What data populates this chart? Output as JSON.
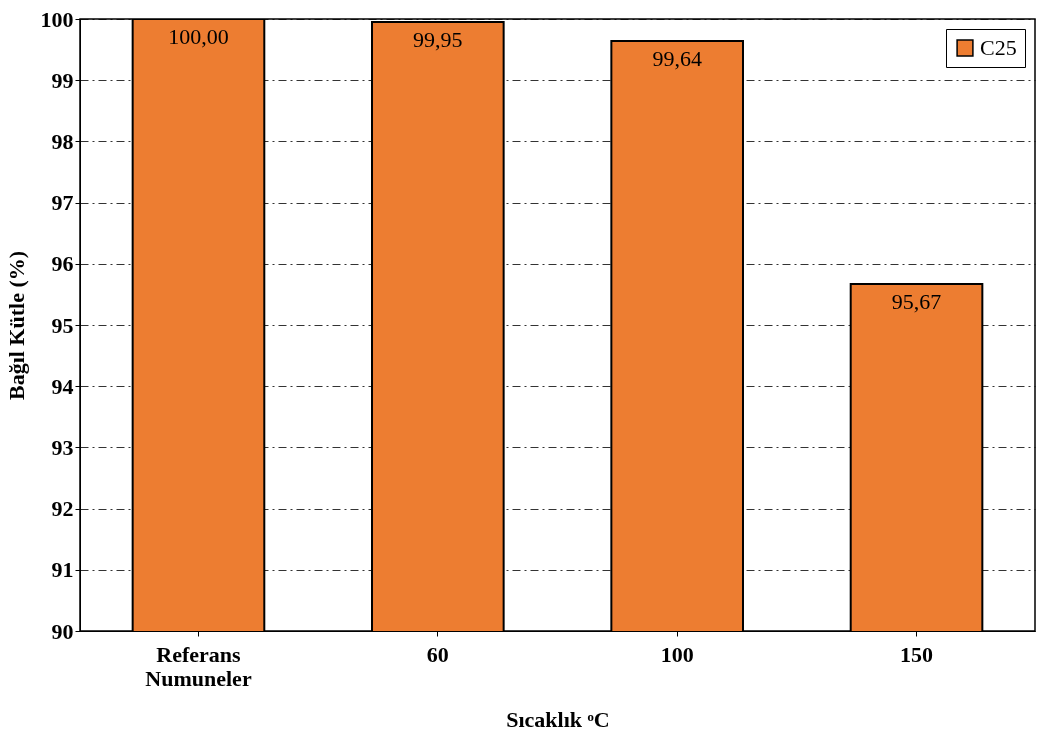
{
  "chart_data": {
    "type": "bar",
    "xlabel": "Sıcaklık ᵒC",
    "ylabel": "Bağıl Kütle (%)",
    "categories": [
      "Referans Numuneler",
      "60",
      "100",
      "150"
    ],
    "series": [
      {
        "name": "C25",
        "color": "#ed7d31",
        "values": [
          100,
          99.95,
          99.64,
          95.67
        ],
        "value_labels": [
          "100,00",
          "99,95",
          "99,64",
          "95,67"
        ]
      }
    ],
    "ylim": [
      90,
      100
    ],
    "yticks": [
      90,
      91,
      92,
      93,
      94,
      95,
      96,
      97,
      98,
      99,
      100
    ],
    "grid": "y",
    "legend": "top right"
  }
}
